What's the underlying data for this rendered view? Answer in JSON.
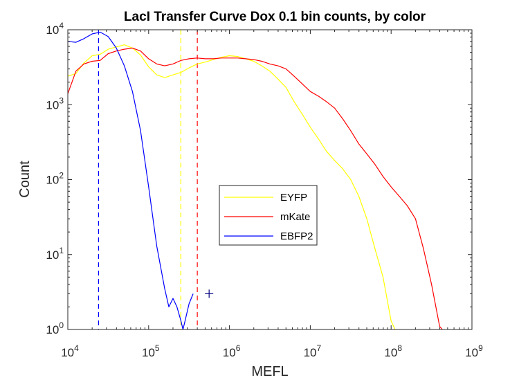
{
  "chart_data": {
    "type": "line",
    "title": "LacI Transfer Curve Dox 0.1 bin counts, by color",
    "xlabel": "MEFL",
    "ylabel": "Count",
    "xscale": "log",
    "yscale": "log",
    "xlim": [
      10000,
      1000000000
    ],
    "ylim": [
      1,
      10000
    ],
    "x_ticks": [
      {
        "base": "10",
        "exp": "4",
        "value": 10000
      },
      {
        "base": "10",
        "exp": "5",
        "value": 100000
      },
      {
        "base": "10",
        "exp": "6",
        "value": 1000000
      },
      {
        "base": "10",
        "exp": "7",
        "value": 10000000
      },
      {
        "base": "10",
        "exp": "8",
        "value": 100000000
      },
      {
        "base": "10",
        "exp": "9",
        "value": 1000000000
      }
    ],
    "y_ticks": [
      {
        "base": "10",
        "exp": "0",
        "value": 1
      },
      {
        "base": "10",
        "exp": "1",
        "value": 10
      },
      {
        "base": "10",
        "exp": "2",
        "value": 100
      },
      {
        "base": "10",
        "exp": "3",
        "value": 1000
      },
      {
        "base": "10",
        "exp": "4",
        "value": 10000
      }
    ],
    "grid": false,
    "legend_position": "center-right",
    "series": [
      {
        "name": "EYFP",
        "color": "#ffff00",
        "points": [
          [
            10000,
            2400
          ],
          [
            12600,
            2600
          ],
          [
            15800,
            3600
          ],
          [
            20000,
            4500
          ],
          [
            25100,
            4700
          ],
          [
            31600,
            5500
          ],
          [
            39800,
            5900
          ],
          [
            50100,
            6300
          ],
          [
            63100,
            5700
          ],
          [
            79400,
            4600
          ],
          [
            100000,
            3200
          ],
          [
            126000,
            2500
          ],
          [
            158000,
            2300
          ],
          [
            200000,
            2500
          ],
          [
            251000,
            2700
          ],
          [
            316000,
            3100
          ],
          [
            398000,
            3500
          ],
          [
            501000,
            3700
          ],
          [
            631000,
            4000
          ],
          [
            794000,
            4300
          ],
          [
            1000000,
            4500
          ],
          [
            1260000,
            4400
          ],
          [
            1580000,
            4100
          ],
          [
            2000000,
            3800
          ],
          [
            2510000,
            3300
          ],
          [
            3160000,
            2800
          ],
          [
            3980000,
            2200
          ],
          [
            5010000,
            1700
          ],
          [
            6310000,
            1100
          ],
          [
            7940000,
            750
          ],
          [
            10000000,
            500
          ],
          [
            12600000,
            350
          ],
          [
            15800000,
            240
          ],
          [
            20000000,
            180
          ],
          [
            25100000,
            140
          ],
          [
            31600000,
            100
          ],
          [
            39800000,
            60
          ],
          [
            50100000,
            30
          ],
          [
            63100000,
            12
          ],
          [
            79400000,
            5
          ],
          [
            100000000,
            1.3
          ],
          [
            112000000,
            1
          ]
        ]
      },
      {
        "name": "mKate",
        "color": "#ff0000",
        "points": [
          [
            10000,
            1400
          ],
          [
            12600,
            2800
          ],
          [
            15800,
            3500
          ],
          [
            20000,
            3800
          ],
          [
            25100,
            3900
          ],
          [
            31600,
            4800
          ],
          [
            39800,
            5200
          ],
          [
            50100,
            5500
          ],
          [
            63100,
            5700
          ],
          [
            79400,
            5200
          ],
          [
            100000,
            4100
          ],
          [
            126000,
            3500
          ],
          [
            158000,
            3300
          ],
          [
            200000,
            3500
          ],
          [
            251000,
            3900
          ],
          [
            316000,
            4100
          ],
          [
            398000,
            4200
          ],
          [
            501000,
            4100
          ],
          [
            631000,
            4100
          ],
          [
            794000,
            4200
          ],
          [
            1000000,
            4200
          ],
          [
            1260000,
            4200
          ],
          [
            1580000,
            4100
          ],
          [
            2000000,
            4000
          ],
          [
            2510000,
            3800
          ],
          [
            3160000,
            3500
          ],
          [
            3980000,
            3300
          ],
          [
            5010000,
            3000
          ],
          [
            6310000,
            2400
          ],
          [
            7940000,
            1900
          ],
          [
            10000000,
            1500
          ],
          [
            12600000,
            1300
          ],
          [
            15800000,
            1100
          ],
          [
            20000000,
            900
          ],
          [
            25100000,
            650
          ],
          [
            31600000,
            450
          ],
          [
            39800000,
            300
          ],
          [
            50100000,
            220
          ],
          [
            63100000,
            160
          ],
          [
            79400000,
            110
          ],
          [
            100000000,
            80
          ],
          [
            126000000,
            60
          ],
          [
            158000000,
            45
          ],
          [
            200000000,
            30
          ],
          [
            251000000,
            12
          ],
          [
            316000000,
            4
          ],
          [
            398000000,
            1.1
          ],
          [
            430000000,
            1
          ]
        ]
      },
      {
        "name": "EBFP2",
        "color": "#0000ff",
        "points": [
          [
            10000,
            7000
          ],
          [
            12600,
            6800
          ],
          [
            15800,
            7600
          ],
          [
            20000,
            8800
          ],
          [
            25100,
            9300
          ],
          [
            31600,
            8100
          ],
          [
            39800,
            5700
          ],
          [
            50100,
            3300
          ],
          [
            63100,
            1500
          ],
          [
            79400,
            450
          ],
          [
            100000,
            80
          ],
          [
            126000,
            13
          ],
          [
            158000,
            3.5
          ],
          [
            178000,
            2
          ],
          [
            200000,
            2.6
          ],
          [
            224000,
            2
          ],
          [
            251000,
            1.3
          ],
          [
            266000,
            1
          ],
          [
            282000,
            1.3
          ],
          [
            316000,
            2.2
          ],
          [
            355000,
            3
          ]
        ]
      }
    ],
    "vlines": [
      {
        "series": "EBFP2",
        "x": 24000,
        "color": "#0000ff"
      },
      {
        "series": "EYFP",
        "x": 250000,
        "color": "#ffff00"
      },
      {
        "series": "mKate",
        "x": 400000,
        "color": "#ff0000"
      }
    ],
    "markers": [
      {
        "symbol": "+",
        "x": 560000,
        "y": 3,
        "color": "#000080"
      }
    ]
  }
}
